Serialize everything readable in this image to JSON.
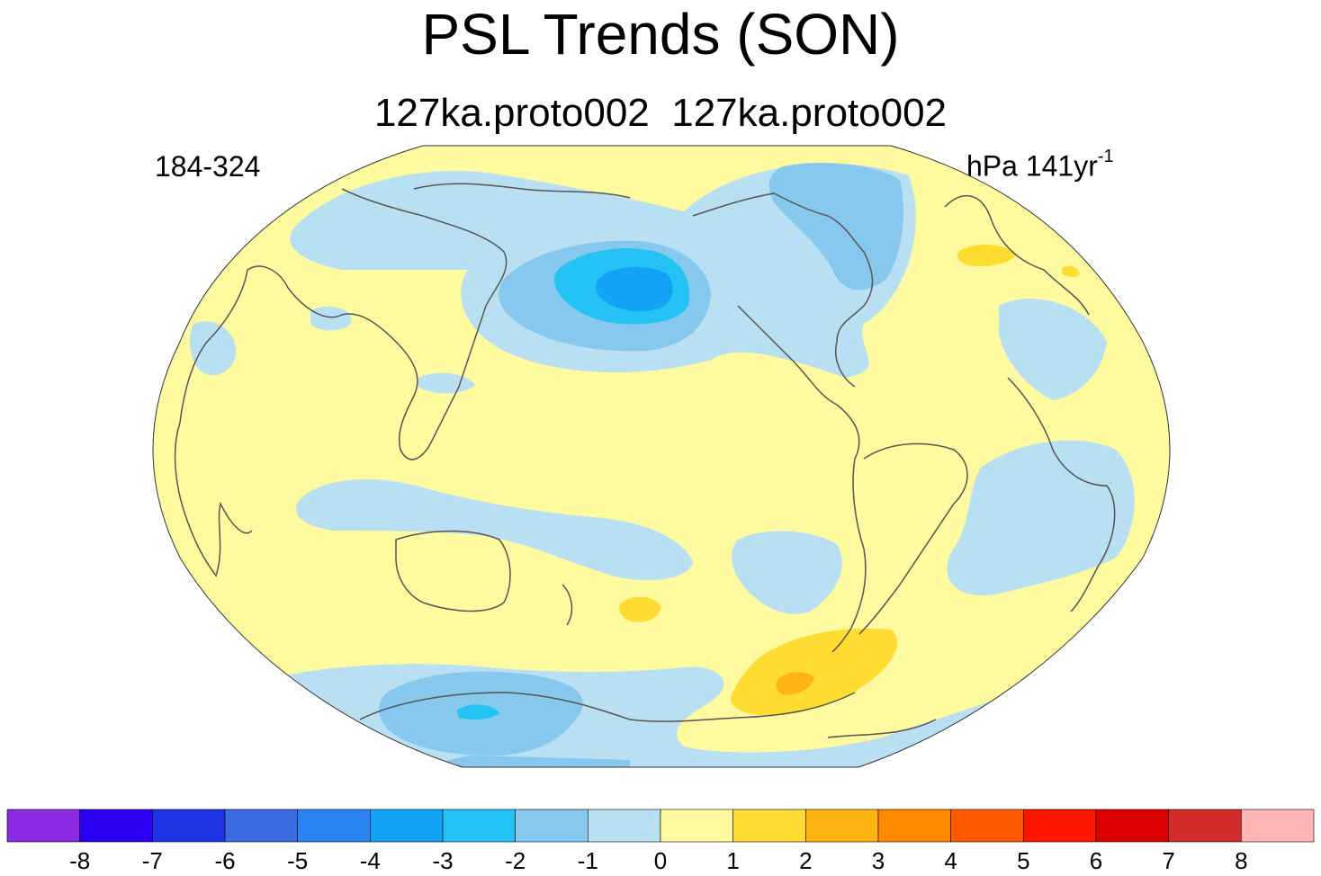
{
  "title": "PSL Trends (SON)",
  "subtitle_left": "127ka.proto002",
  "subtitle_right": "127ka.proto002",
  "period": "184-324",
  "units": {
    "text": "hPa 141yr",
    "exponent": "-1"
  },
  "colorbar": {
    "colors": [
      "#8a2be2",
      "#2b00f2",
      "#1f33e6",
      "#3b6be3",
      "#2a83f2",
      "#13a3f5",
      "#25c2f5",
      "#87c9ee",
      "#b9e0f2",
      "#fefaa0",
      "#ffdc32",
      "#ffb30e",
      "#ff8a00",
      "#ff5a00",
      "#ff1400",
      "#dc0000",
      "#d32b2b",
      "#ffb5b5"
    ],
    "labels": [
      "-8",
      "-7",
      "-6",
      "-5",
      "-4",
      "-3",
      "-2",
      "-1",
      "0",
      "1",
      "2",
      "3",
      "4",
      "5",
      "6",
      "7",
      "8"
    ]
  },
  "fill_colors": {
    "ocean_base": "#fefaa0",
    "neg1": "#b9e0f2",
    "neg2": "#87c9ee",
    "neg3": "#25c2f5",
    "neg4": "#13a3f5",
    "pos1": "#ffdc32",
    "pos2": "#ffb30e",
    "coast": "#555555"
  }
}
